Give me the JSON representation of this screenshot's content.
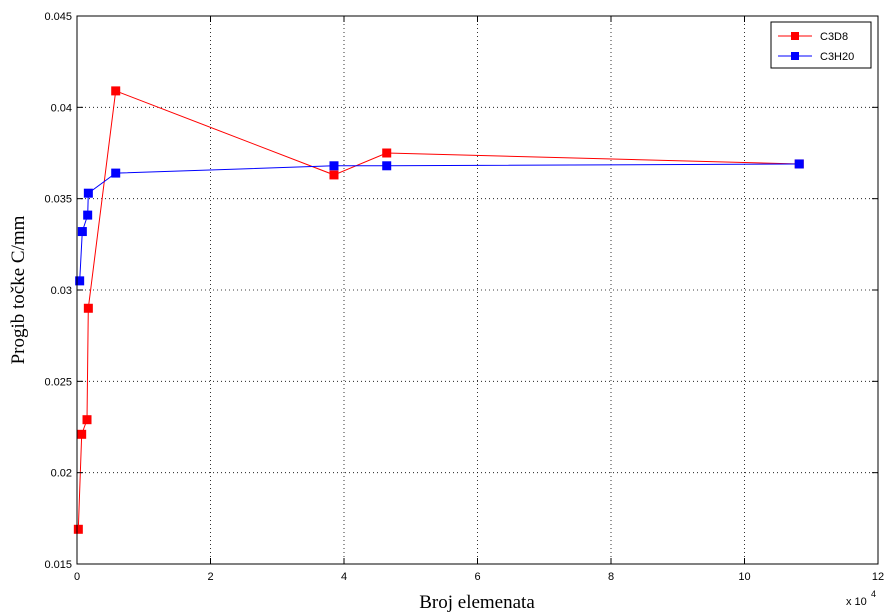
{
  "chart_data": {
    "type": "line",
    "xlabel": "Broj elemenata",
    "ylabel": "Progib točke C/mm",
    "x_exponent": {
      "base": "x 10",
      "power": "4"
    },
    "xlim": [
      0,
      12
    ],
    "ylim": [
      0.015,
      0.045
    ],
    "grid": true,
    "legend_position": "top-right",
    "x_ticks": [
      "0",
      "2",
      "4",
      "6",
      "8",
      "10",
      "12"
    ],
    "y_ticks": [
      "0.015",
      "0.02",
      "0.025",
      "0.03",
      "0.035",
      "0.04",
      "0.045"
    ],
    "series": [
      {
        "name": "C3D8",
        "color": "#ff0000",
        "marker": "square",
        "x": [
          0.02,
          0.07,
          0.15,
          0.17,
          0.58,
          3.85,
          4.64,
          10.82
        ],
        "y": [
          0.0169,
          0.0221,
          0.0229,
          0.029,
          0.0409,
          0.0363,
          0.0375,
          0.0369
        ]
      },
      {
        "name": "C3H20",
        "color": "#0000ff",
        "marker": "square",
        "x": [
          0.04,
          0.08,
          0.16,
          0.17,
          0.58,
          3.85,
          4.64,
          10.82
        ],
        "y": [
          0.0305,
          0.0332,
          0.0341,
          0.0353,
          0.0364,
          0.0368,
          0.0368,
          0.0369
        ]
      }
    ]
  }
}
